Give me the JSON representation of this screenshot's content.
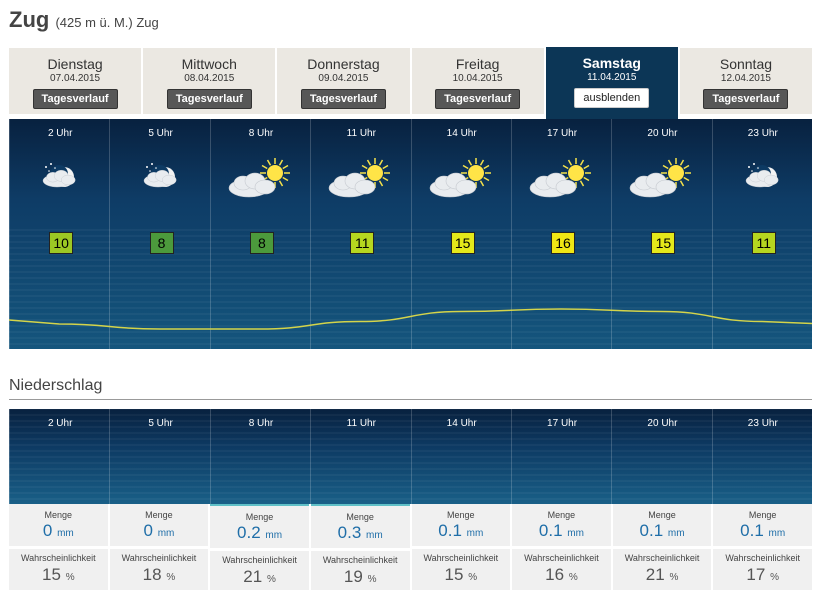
{
  "header": {
    "city": "Zug",
    "subtitle": "(425 m ü. M.) Zug"
  },
  "days": [
    {
      "name": "Dienstag",
      "date": "07.04.2015",
      "button": "Tagesverlauf",
      "active": false
    },
    {
      "name": "Mittwoch",
      "date": "08.04.2015",
      "button": "Tagesverlauf",
      "active": false
    },
    {
      "name": "Donnerstag",
      "date": "09.04.2015",
      "button": "Tagesverlauf",
      "active": false
    },
    {
      "name": "Freitag",
      "date": "10.04.2015",
      "button": "Tagesverlauf",
      "active": false
    },
    {
      "name": "Samstag",
      "date": "11.04.2015",
      "button": "ausblenden",
      "active": true
    },
    {
      "name": "Sonntag",
      "date": "12.04.2015",
      "button": "Tagesverlauf",
      "active": false
    }
  ],
  "forecast": [
    {
      "hour": "2 Uhr",
      "icon": "moon-cloud-icon",
      "temp": 10,
      "temp_color": "#9cc824"
    },
    {
      "hour": "5 Uhr",
      "icon": "moon-cloud-icon",
      "temp": 8,
      "temp_color": "#4c9a3c"
    },
    {
      "hour": "8 Uhr",
      "icon": "sun-cloud-icon",
      "temp": 8,
      "temp_color": "#4c9a3c"
    },
    {
      "hour": "11 Uhr",
      "icon": "sun-cloud-icon",
      "temp": 11,
      "temp_color": "#b6d61f"
    },
    {
      "hour": "14 Uhr",
      "icon": "sun-cloud-icon",
      "temp": 15,
      "temp_color": "#e4e81a"
    },
    {
      "hour": "17 Uhr",
      "icon": "sun-cloud-icon",
      "temp": 16,
      "temp_color": "#f0e614"
    },
    {
      "hour": "20 Uhr",
      "icon": "sun-cloud-icon",
      "temp": 15,
      "temp_color": "#e4e81a"
    },
    {
      "hour": "23 Uhr",
      "icon": "moon-cloud-icon",
      "temp": 11,
      "temp_color": "#b6d61f"
    }
  ],
  "precipitation": {
    "title": "Niederschlag",
    "amount_label": "Menge",
    "amount_unit": "mm",
    "probability_label": "Wahrscheinlichkeit",
    "probability_unit": "%",
    "hours": [
      {
        "hour": "2 Uhr",
        "amount": "0",
        "probability": "15"
      },
      {
        "hour": "5 Uhr",
        "amount": "0",
        "probability": "18"
      },
      {
        "hour": "8 Uhr",
        "amount": "0.2",
        "probability": "21"
      },
      {
        "hour": "11 Uhr",
        "amount": "0.3",
        "probability": "19"
      },
      {
        "hour": "14 Uhr",
        "amount": "0.1",
        "probability": "15"
      },
      {
        "hour": "17 Uhr",
        "amount": "0.1",
        "probability": "16"
      },
      {
        "hour": "20 Uhr",
        "amount": "0.1",
        "probability": "21"
      },
      {
        "hour": "23 Uhr",
        "amount": "0.1",
        "probability": "17"
      }
    ]
  },
  "colors": {
    "panel": "#0c3656",
    "curve": "#d4d44a",
    "tab": "#ebe8e2"
  }
}
